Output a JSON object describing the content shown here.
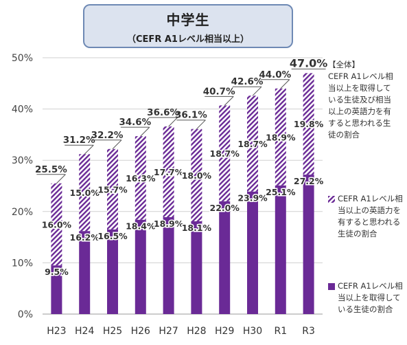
{
  "title": {
    "main": "中学生",
    "sub": "（CEFR A1レベル相当以上）"
  },
  "colors": {
    "solid": "#6a2a96",
    "hatch_stripe": "#6a2a96",
    "hatch_bg": "#ffffff",
    "title_bg": "#dce3ef",
    "title_border": "#6e89b4"
  },
  "legend": {
    "total_heading": "【全体】",
    "total_text": "CEFR A1レベル相当以上を取得している生徒及び相当以上の英語力を有すると思われる生徒の割合",
    "hatched_text": "CEFR A1レベル相当以上の英語力を有すると思われる生徒の割合",
    "solid_text": "CEFR A1レベル相当以上を取得している生徒の割合"
  },
  "chart_data": {
    "type": "bar",
    "stacked": true,
    "categories": [
      "H23",
      "H24",
      "H25",
      "H26",
      "H27",
      "H28",
      "H29",
      "H30",
      "R1",
      "R3"
    ],
    "series": [
      {
        "values": [
          9.5,
          16.2,
          16.5,
          18.4,
          18.9,
          18.1,
          22.0,
          23.9,
          25.1,
          27.2
        ]
      },
      {
        "values": [
          16.0,
          15.0,
          15.7,
          16.3,
          17.7,
          18.0,
          18.7,
          18.7,
          18.9,
          19.8
        ]
      }
    ],
    "totals": [
      25.5,
      31.2,
      32.2,
      34.6,
      36.6,
      36.1,
      40.7,
      42.6,
      44.0,
      47.0
    ],
    "solid_labels": [
      "9.5%",
      "16.2%",
      "16.5%",
      "18.4%",
      "18.9%",
      "18.1%",
      "22.0%",
      "23.9%",
      "25.1%",
      "27.2%"
    ],
    "hatched_labels": [
      "16.0%",
      "15.0%",
      "15.7%",
      "16.3%",
      "17.7%",
      "18.0%",
      "18.7%",
      "18.7%",
      "18.9%",
      "19.8%"
    ],
    "total_labels": [
      "25.5%",
      "31.2%",
      "32.2%",
      "34.6%",
      "36.6%",
      "36.1%",
      "40.7%",
      "42.6%",
      "44.0%",
      "47.0%"
    ],
    "y_ticks": [
      "0%",
      "10%",
      "20%",
      "30%",
      "40%",
      "50%"
    ],
    "ylim": [
      0,
      50
    ],
    "grid": true
  }
}
